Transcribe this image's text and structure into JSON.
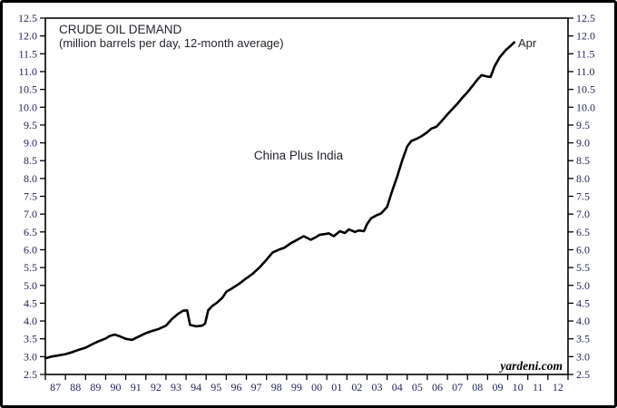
{
  "chart_data": {
    "type": "line",
    "title": "CRUDE OIL DEMAND",
    "subtitle": "(million barrels per day, 12-month average)",
    "series_label": "China Plus India",
    "end_label": "Apr",
    "source": "yardeni.com",
    "y_unit": "million barrels per day",
    "ylim": [
      2.5,
      12.5
    ],
    "y_tick_step": 0.5,
    "x_range": [
      1987,
      2013
    ],
    "x_tick_labels": [
      "87",
      "88",
      "89",
      "90",
      "91",
      "92",
      "93",
      "94",
      "95",
      "96",
      "97",
      "98",
      "99",
      "00",
      "01",
      "02",
      "03",
      "04",
      "05",
      "06",
      "07",
      "08",
      "09",
      "10",
      "11",
      "12"
    ],
    "grid": false,
    "legend": "none",
    "line_color": "#000000",
    "text_color": "#1f2257",
    "series": [
      {
        "name": "China plus India crude oil demand (Mb/d, 12-month average)",
        "points": [
          [
            1987.0,
            2.95
          ],
          [
            1987.3,
            3.0
          ],
          [
            1987.6,
            3.03
          ],
          [
            1988.0,
            3.07
          ],
          [
            1988.3,
            3.12
          ],
          [
            1988.6,
            3.18
          ],
          [
            1989.0,
            3.25
          ],
          [
            1989.3,
            3.34
          ],
          [
            1989.6,
            3.42
          ],
          [
            1990.0,
            3.51
          ],
          [
            1990.2,
            3.58
          ],
          [
            1990.45,
            3.62
          ],
          [
            1990.7,
            3.57
          ],
          [
            1991.0,
            3.5
          ],
          [
            1991.3,
            3.47
          ],
          [
            1991.6,
            3.55
          ],
          [
            1992.0,
            3.66
          ],
          [
            1992.3,
            3.72
          ],
          [
            1992.65,
            3.78
          ],
          [
            1993.0,
            3.87
          ],
          [
            1993.3,
            4.06
          ],
          [
            1993.6,
            4.2
          ],
          [
            1993.85,
            4.29
          ],
          [
            1994.05,
            4.3
          ],
          [
            1994.2,
            3.89
          ],
          [
            1994.5,
            3.85
          ],
          [
            1994.8,
            3.87
          ],
          [
            1994.95,
            3.93
          ],
          [
            1995.1,
            4.3
          ],
          [
            1995.3,
            4.42
          ],
          [
            1995.55,
            4.52
          ],
          [
            1995.8,
            4.65
          ],
          [
            1996.0,
            4.82
          ],
          [
            1996.3,
            4.92
          ],
          [
            1996.65,
            5.05
          ],
          [
            1997.0,
            5.2
          ],
          [
            1997.3,
            5.32
          ],
          [
            1997.65,
            5.5
          ],
          [
            1998.0,
            5.72
          ],
          [
            1998.3,
            5.92
          ],
          [
            1998.6,
            6.0
          ],
          [
            1998.9,
            6.06
          ],
          [
            1999.2,
            6.18
          ],
          [
            1999.5,
            6.27
          ],
          [
            1999.85,
            6.38
          ],
          [
            2000.2,
            6.28
          ],
          [
            2000.45,
            6.35
          ],
          [
            2000.65,
            6.42
          ],
          [
            2000.9,
            6.44
          ],
          [
            2001.1,
            6.46
          ],
          [
            2001.35,
            6.38
          ],
          [
            2001.65,
            6.52
          ],
          [
            2001.9,
            6.47
          ],
          [
            2002.1,
            6.57
          ],
          [
            2002.4,
            6.5
          ],
          [
            2002.6,
            6.54
          ],
          [
            2002.85,
            6.52
          ],
          [
            2003.0,
            6.72
          ],
          [
            2003.2,
            6.88
          ],
          [
            2003.45,
            6.96
          ],
          [
            2003.7,
            7.02
          ],
          [
            2004.0,
            7.2
          ],
          [
            2004.25,
            7.65
          ],
          [
            2004.5,
            8.05
          ],
          [
            2004.75,
            8.5
          ],
          [
            2005.0,
            8.9
          ],
          [
            2005.2,
            9.05
          ],
          [
            2005.5,
            9.12
          ],
          [
            2005.75,
            9.2
          ],
          [
            2006.0,
            9.3
          ],
          [
            2006.2,
            9.4
          ],
          [
            2006.45,
            9.45
          ],
          [
            2006.7,
            9.6
          ],
          [
            2007.0,
            9.8
          ],
          [
            2007.25,
            9.95
          ],
          [
            2007.5,
            10.1
          ],
          [
            2007.75,
            10.27
          ],
          [
            2008.0,
            10.42
          ],
          [
            2008.25,
            10.6
          ],
          [
            2008.5,
            10.78
          ],
          [
            2008.7,
            10.9
          ],
          [
            2009.0,
            10.86
          ],
          [
            2009.15,
            10.85
          ],
          [
            2009.35,
            11.15
          ],
          [
            2009.6,
            11.4
          ],
          [
            2009.9,
            11.6
          ],
          [
            2010.1,
            11.7
          ],
          [
            2010.33,
            11.82
          ]
        ]
      }
    ]
  }
}
